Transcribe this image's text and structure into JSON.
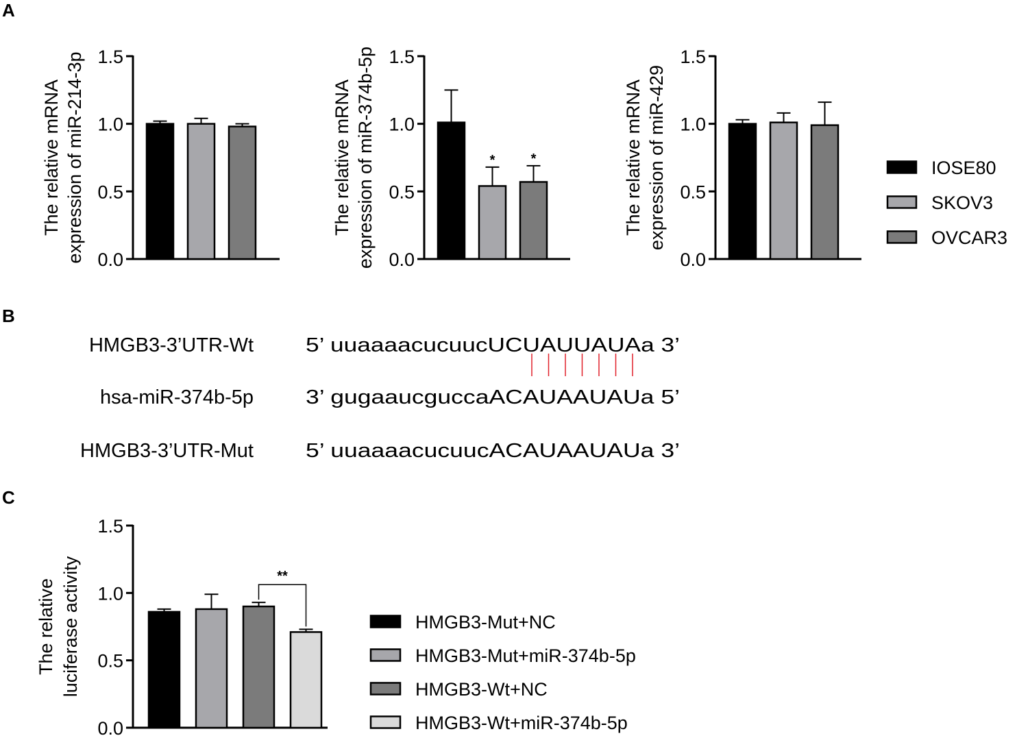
{
  "panels": {
    "a": {
      "letter": "A"
    },
    "b": {
      "letter": "B"
    },
    "c": {
      "letter": "C"
    }
  },
  "colors": {
    "IOSE80": "#000000",
    "SKOV3": "#a7a7ab",
    "OVCAR3": "#7b7b7b",
    "HMGB3-Mut+NC": "#000000",
    "HMGB3-Mut+miR-374b-5p": "#a7a7ab",
    "HMGB3-Wt+NC": "#7b7b7b",
    "HMGB3-Wt+miR-374b-5p": "#dadada",
    "pairing_lines": "#e0202a"
  },
  "sequences": {
    "rows": [
      {
        "label": "HMGB3-3’UTR-Wt",
        "seq": "5’ uuaaaacucuucUCUAUUAUAa 3’"
      },
      {
        "label": "hsa-miR-374b-5p",
        "seq": "3’ gugaaucguccaACAUAAUAUa 5’"
      },
      {
        "label": "HMGB3-3’UTR-Mut",
        "seq": "5’ uuaaaacucuucACAUAAUAUa 3’"
      }
    ],
    "pairing_count": 7
  },
  "chart_data": [
    {
      "id": "a1",
      "type": "bar",
      "categories": [
        "IOSE80",
        "SKOV3",
        "OVCAR3"
      ],
      "values": [
        1.0,
        1.0,
        0.98
      ],
      "errors": [
        0.02,
        0.04,
        0.02
      ],
      "significance": [
        "",
        "",
        ""
      ],
      "ylabel_lines": [
        "The relative mRNA",
        "expression of miR-214-3p"
      ],
      "ylim": [
        0,
        1.5
      ],
      "yticks": [
        "0.0",
        "0.5",
        "1.0",
        "1.5"
      ],
      "legend": "right"
    },
    {
      "id": "a2",
      "type": "bar",
      "categories": [
        "IOSE80",
        "SKOV3",
        "OVCAR3"
      ],
      "values": [
        1.01,
        0.54,
        0.57
      ],
      "errors": [
        0.24,
        0.14,
        0.12
      ],
      "significance": [
        "",
        "*",
        "*"
      ],
      "ylabel_lines": [
        "The relative mRNA",
        "expression of miR-374b-5p"
      ],
      "ylim": [
        0,
        1.5
      ],
      "yticks": [
        "0.0",
        "0.5",
        "1.0",
        "1.5"
      ],
      "legend": "right"
    },
    {
      "id": "a3",
      "type": "bar",
      "categories": [
        "IOSE80",
        "SKOV3",
        "OVCAR3"
      ],
      "values": [
        1.0,
        1.01,
        0.99
      ],
      "errors": [
        0.03,
        0.07,
        0.17
      ],
      "significance": [
        "",
        "",
        ""
      ],
      "ylabel_lines": [
        "The relative mRNA",
        "expression of miR-429"
      ],
      "ylim": [
        0,
        1.5
      ],
      "yticks": [
        "0.0",
        "0.5",
        "1.0",
        "1.5"
      ],
      "legend": "right",
      "legend_entries": [
        "IOSE80",
        "SKOV3",
        "OVCAR3"
      ]
    },
    {
      "id": "c",
      "type": "bar",
      "categories": [
        "HMGB3-Mut+NC",
        "HMGB3-Mut+miR-374b-5p",
        "HMGB3-Wt+NC",
        "HMGB3-Wt+miR-374b-5p"
      ],
      "values": [
        0.86,
        0.88,
        0.9,
        0.71
      ],
      "errors": [
        0.02,
        0.11,
        0.03,
        0.02
      ],
      "comparison": {
        "from": 2,
        "to": 3,
        "label": "**"
      },
      "ylabel_lines": [
        "The relative",
        "luciferase activity"
      ],
      "ylim": [
        0,
        1.5
      ],
      "yticks": [
        "0.0",
        "0.5",
        "1.0",
        "1.5"
      ],
      "legend": "right",
      "legend_entries": [
        "HMGB3-Mut+NC",
        "HMGB3-Mut+miR-374b-5p",
        "HMGB3-Wt+NC",
        "HMGB3-Wt+miR-374b-5p"
      ]
    }
  ]
}
